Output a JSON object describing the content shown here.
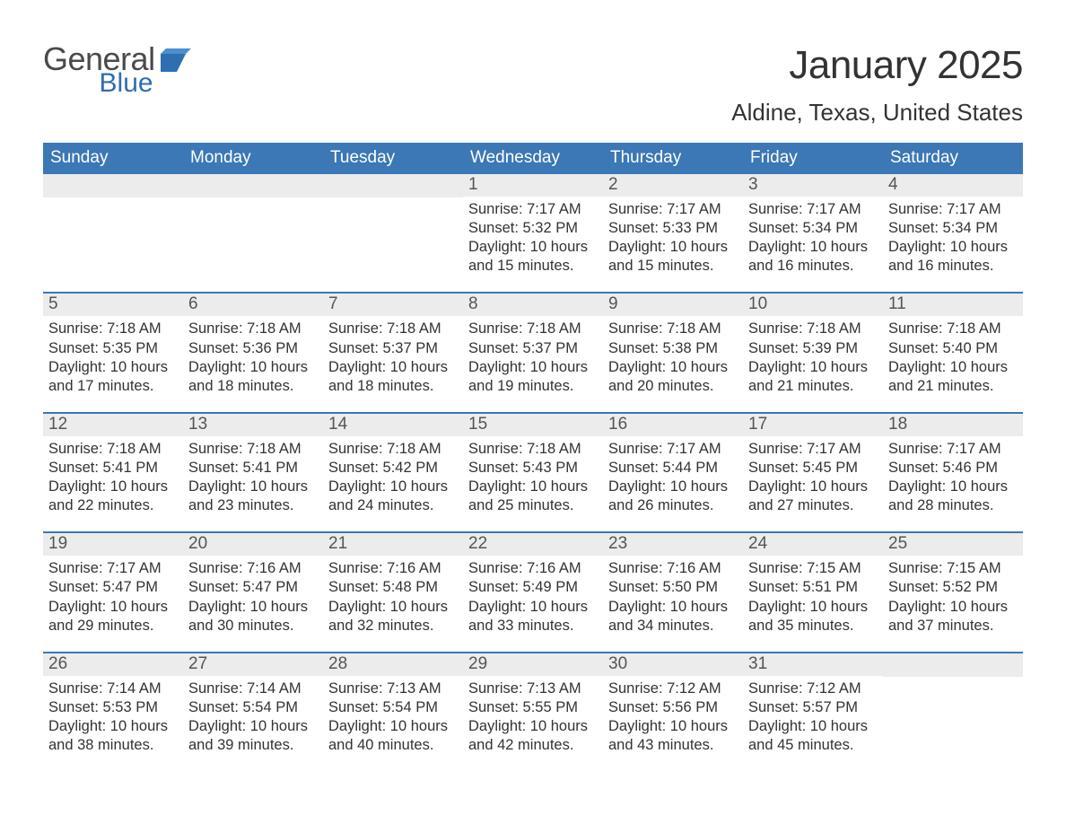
{
  "logo": {
    "word1": "General",
    "word2": "Blue"
  },
  "title": "January 2025",
  "location": "Aldine, Texas, United States",
  "colors": {
    "header_bg": "#3b78b5",
    "header_text": "#ffffff",
    "daynum_bg": "#ececec",
    "daynum_text": "#555555",
    "body_text": "#333333",
    "rule": "#3b78b5",
    "logo_gray": "#4a4a4a",
    "logo_blue": "#2f6eb0",
    "page_bg": "#ffffff"
  },
  "fonts": {
    "title_pt": 44,
    "location_pt": 26,
    "weekday_pt": 19,
    "daynum_pt": 19,
    "body_pt": 16.5
  },
  "weekdays": [
    "Sunday",
    "Monday",
    "Tuesday",
    "Wednesday",
    "Thursday",
    "Friday",
    "Saturday"
  ],
  "weeks": [
    [
      null,
      null,
      null,
      {
        "n": "1",
        "sr": "Sunrise: 7:17 AM",
        "ss": "Sunset: 5:32 PM",
        "d1": "Daylight: 10 hours",
        "d2": "and 15 minutes."
      },
      {
        "n": "2",
        "sr": "Sunrise: 7:17 AM",
        "ss": "Sunset: 5:33 PM",
        "d1": "Daylight: 10 hours",
        "d2": "and 15 minutes."
      },
      {
        "n": "3",
        "sr": "Sunrise: 7:17 AM",
        "ss": "Sunset: 5:34 PM",
        "d1": "Daylight: 10 hours",
        "d2": "and 16 minutes."
      },
      {
        "n": "4",
        "sr": "Sunrise: 7:17 AM",
        "ss": "Sunset: 5:34 PM",
        "d1": "Daylight: 10 hours",
        "d2": "and 16 minutes."
      }
    ],
    [
      {
        "n": "5",
        "sr": "Sunrise: 7:18 AM",
        "ss": "Sunset: 5:35 PM",
        "d1": "Daylight: 10 hours",
        "d2": "and 17 minutes."
      },
      {
        "n": "6",
        "sr": "Sunrise: 7:18 AM",
        "ss": "Sunset: 5:36 PM",
        "d1": "Daylight: 10 hours",
        "d2": "and 18 minutes."
      },
      {
        "n": "7",
        "sr": "Sunrise: 7:18 AM",
        "ss": "Sunset: 5:37 PM",
        "d1": "Daylight: 10 hours",
        "d2": "and 18 minutes."
      },
      {
        "n": "8",
        "sr": "Sunrise: 7:18 AM",
        "ss": "Sunset: 5:37 PM",
        "d1": "Daylight: 10 hours",
        "d2": "and 19 minutes."
      },
      {
        "n": "9",
        "sr": "Sunrise: 7:18 AM",
        "ss": "Sunset: 5:38 PM",
        "d1": "Daylight: 10 hours",
        "d2": "and 20 minutes."
      },
      {
        "n": "10",
        "sr": "Sunrise: 7:18 AM",
        "ss": "Sunset: 5:39 PM",
        "d1": "Daylight: 10 hours",
        "d2": "and 21 minutes."
      },
      {
        "n": "11",
        "sr": "Sunrise: 7:18 AM",
        "ss": "Sunset: 5:40 PM",
        "d1": "Daylight: 10 hours",
        "d2": "and 21 minutes."
      }
    ],
    [
      {
        "n": "12",
        "sr": "Sunrise: 7:18 AM",
        "ss": "Sunset: 5:41 PM",
        "d1": "Daylight: 10 hours",
        "d2": "and 22 minutes."
      },
      {
        "n": "13",
        "sr": "Sunrise: 7:18 AM",
        "ss": "Sunset: 5:41 PM",
        "d1": "Daylight: 10 hours",
        "d2": "and 23 minutes."
      },
      {
        "n": "14",
        "sr": "Sunrise: 7:18 AM",
        "ss": "Sunset: 5:42 PM",
        "d1": "Daylight: 10 hours",
        "d2": "and 24 minutes."
      },
      {
        "n": "15",
        "sr": "Sunrise: 7:18 AM",
        "ss": "Sunset: 5:43 PM",
        "d1": "Daylight: 10 hours",
        "d2": "and 25 minutes."
      },
      {
        "n": "16",
        "sr": "Sunrise: 7:17 AM",
        "ss": "Sunset: 5:44 PM",
        "d1": "Daylight: 10 hours",
        "d2": "and 26 minutes."
      },
      {
        "n": "17",
        "sr": "Sunrise: 7:17 AM",
        "ss": "Sunset: 5:45 PM",
        "d1": "Daylight: 10 hours",
        "d2": "and 27 minutes."
      },
      {
        "n": "18",
        "sr": "Sunrise: 7:17 AM",
        "ss": "Sunset: 5:46 PM",
        "d1": "Daylight: 10 hours",
        "d2": "and 28 minutes."
      }
    ],
    [
      {
        "n": "19",
        "sr": "Sunrise: 7:17 AM",
        "ss": "Sunset: 5:47 PM",
        "d1": "Daylight: 10 hours",
        "d2": "and 29 minutes."
      },
      {
        "n": "20",
        "sr": "Sunrise: 7:16 AM",
        "ss": "Sunset: 5:47 PM",
        "d1": "Daylight: 10 hours",
        "d2": "and 30 minutes."
      },
      {
        "n": "21",
        "sr": "Sunrise: 7:16 AM",
        "ss": "Sunset: 5:48 PM",
        "d1": "Daylight: 10 hours",
        "d2": "and 32 minutes."
      },
      {
        "n": "22",
        "sr": "Sunrise: 7:16 AM",
        "ss": "Sunset: 5:49 PM",
        "d1": "Daylight: 10 hours",
        "d2": "and 33 minutes."
      },
      {
        "n": "23",
        "sr": "Sunrise: 7:16 AM",
        "ss": "Sunset: 5:50 PM",
        "d1": "Daylight: 10 hours",
        "d2": "and 34 minutes."
      },
      {
        "n": "24",
        "sr": "Sunrise: 7:15 AM",
        "ss": "Sunset: 5:51 PM",
        "d1": "Daylight: 10 hours",
        "d2": "and 35 minutes."
      },
      {
        "n": "25",
        "sr": "Sunrise: 7:15 AM",
        "ss": "Sunset: 5:52 PM",
        "d1": "Daylight: 10 hours",
        "d2": "and 37 minutes."
      }
    ],
    [
      {
        "n": "26",
        "sr": "Sunrise: 7:14 AM",
        "ss": "Sunset: 5:53 PM",
        "d1": "Daylight: 10 hours",
        "d2": "and 38 minutes."
      },
      {
        "n": "27",
        "sr": "Sunrise: 7:14 AM",
        "ss": "Sunset: 5:54 PM",
        "d1": "Daylight: 10 hours",
        "d2": "and 39 minutes."
      },
      {
        "n": "28",
        "sr": "Sunrise: 7:13 AM",
        "ss": "Sunset: 5:54 PM",
        "d1": "Daylight: 10 hours",
        "d2": "and 40 minutes."
      },
      {
        "n": "29",
        "sr": "Sunrise: 7:13 AM",
        "ss": "Sunset: 5:55 PM",
        "d1": "Daylight: 10 hours",
        "d2": "and 42 minutes."
      },
      {
        "n": "30",
        "sr": "Sunrise: 7:12 AM",
        "ss": "Sunset: 5:56 PM",
        "d1": "Daylight: 10 hours",
        "d2": "and 43 minutes."
      },
      {
        "n": "31",
        "sr": "Sunrise: 7:12 AM",
        "ss": "Sunset: 5:57 PM",
        "d1": "Daylight: 10 hours",
        "d2": "and 45 minutes."
      },
      null
    ]
  ]
}
